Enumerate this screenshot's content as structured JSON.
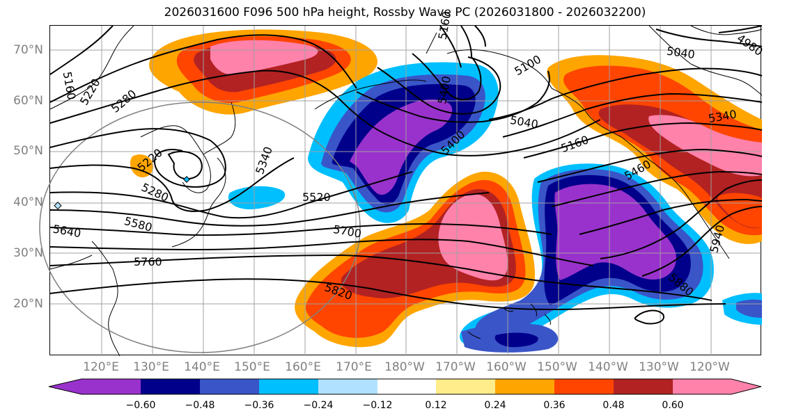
{
  "title": "2026031600 F096 500 hPa height, Rossby Wave PC (2026031800 - 2026032200)",
  "latitude_labels": [
    "70°N",
    "60°N",
    "50°N",
    "40°N",
    "30°N",
    "20°N"
  ],
  "longitude_labels": [
    "120°E",
    "130°E",
    "140°E",
    "150°E",
    "160°E",
    "170°E",
    "180°W",
    "170°W",
    "160°W",
    "150°W",
    "140°W",
    "130°W",
    "120°W"
  ],
  "contour_labels": [
    "5160",
    "5220",
    "5280",
    "5220",
    "5280",
    "5340",
    "5520",
    "5640",
    "5580",
    "5700",
    "5760",
    "5820",
    "5880",
    "5940",
    "5460",
    "5400",
    "5340",
    "5100",
    "5040",
    "4980",
    "5040",
    "5160",
    "5160",
    "5400"
  ],
  "colorbar": {
    "ticks": [
      "−0.60",
      "−0.48",
      "−0.36",
      "−0.24",
      "−0.12",
      "0.12",
      "0.24",
      "0.36",
      "0.48",
      "0.60"
    ],
    "colors": [
      "#9932cc",
      "#00008b",
      "#3a55c8",
      "#00bfff",
      "#b0e2ff",
      "#ffffff",
      "#ffec8b",
      "#ffa500",
      "#ff4500",
      "#b22222",
      "#ff82ab"
    ]
  },
  "colors": {
    "axis_label": "#808080",
    "contour": "#000000",
    "grid": "#a0a0a0"
  }
}
